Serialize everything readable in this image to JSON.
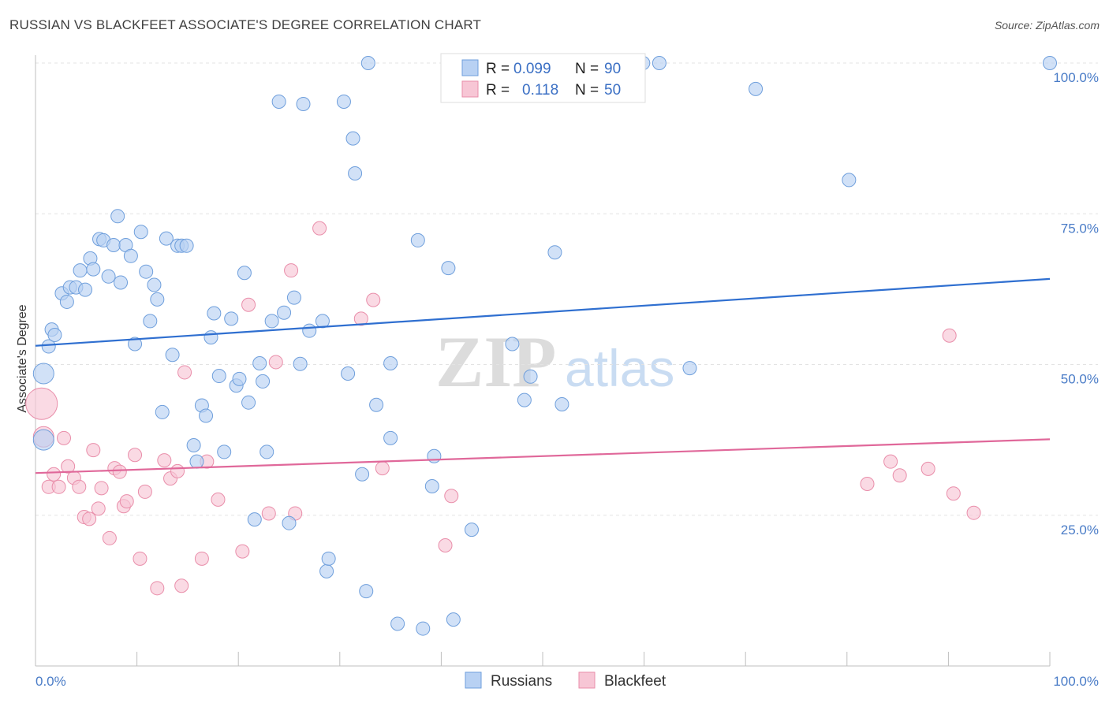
{
  "title": "RUSSIAN VS BLACKFEET ASSOCIATE'S DEGREE CORRELATION CHART",
  "source": "Source: ZipAtlas.com",
  "watermark": {
    "zip": "ZIP",
    "atlas": "atlas"
  },
  "colors": {
    "russians_fill": "#b8d1f3",
    "russians_stroke": "#6f9fdc",
    "russians_line": "#2f6fd0",
    "blackfeet_fill": "#f7c6d5",
    "blackfeet_stroke": "#e98eaa",
    "blackfeet_line": "#e0689a",
    "grid": "#e3e3e3",
    "tick_text": "#4a7cc7"
  },
  "stats": {
    "r_label": "R =",
    "n_label": "N =",
    "rows": [
      {
        "series": "Russians",
        "r": "0.099",
        "n": "90"
      },
      {
        "series": "Blackfeet",
        "r": "0.118",
        "n": "50"
      }
    ]
  },
  "chart_data": {
    "type": "scatter",
    "title": "RUSSIAN VS BLACKFEET ASSOCIATE'S DEGREE CORRELATION CHART",
    "xlabel": "",
    "ylabel": "Associate's Degree",
    "xlim": [
      0,
      100
    ],
    "ylim": [
      0,
      100
    ],
    "x_tick_labels": [
      "0.0%",
      "100.0%"
    ],
    "y_ticks": [
      25,
      50,
      75,
      100
    ],
    "y_tick_labels": [
      "25.0%",
      "50.0%",
      "75.0%",
      "100.0%"
    ],
    "grid": "horizontal dashed",
    "legend": "bottom-center",
    "series": [
      {
        "name": "Russians",
        "trend": [
          [
            0,
            53.1
          ],
          [
            100,
            64.2
          ]
        ],
        "points": [
          [
            0.8,
            37.5
          ],
          [
            0.8,
            48.5
          ],
          [
            1.3,
            53.0
          ],
          [
            1.6,
            55.8
          ],
          [
            1.9,
            54.9
          ],
          [
            2.6,
            61.8
          ],
          [
            3.1,
            60.4
          ],
          [
            3.4,
            62.8
          ],
          [
            4.0,
            62.8
          ],
          [
            4.4,
            65.6
          ],
          [
            4.9,
            62.4
          ],
          [
            5.4,
            67.6
          ],
          [
            5.7,
            65.8
          ],
          [
            6.3,
            70.8
          ],
          [
            6.7,
            70.6
          ],
          [
            7.2,
            64.6
          ],
          [
            7.7,
            69.8
          ],
          [
            8.1,
            74.6
          ],
          [
            8.4,
            63.6
          ],
          [
            8.9,
            69.8
          ],
          [
            9.4,
            68.0
          ],
          [
            9.8,
            53.4
          ],
          [
            10.4,
            72.0
          ],
          [
            10.9,
            65.4
          ],
          [
            11.3,
            57.2
          ],
          [
            11.7,
            63.2
          ],
          [
            12.0,
            60.8
          ],
          [
            12.5,
            42.1
          ],
          [
            12.9,
            70.9
          ],
          [
            13.5,
            51.6
          ],
          [
            14.0,
            69.7
          ],
          [
            14.4,
            69.7
          ],
          [
            14.9,
            69.7
          ],
          [
            15.6,
            36.6
          ],
          [
            15.9,
            33.9
          ],
          [
            16.4,
            43.2
          ],
          [
            16.8,
            41.5
          ],
          [
            17.3,
            54.5
          ],
          [
            17.6,
            58.5
          ],
          [
            18.1,
            48.1
          ],
          [
            18.6,
            35.5
          ],
          [
            19.3,
            57.6
          ],
          [
            19.8,
            46.5
          ],
          [
            20.1,
            47.6
          ],
          [
            20.6,
            65.2
          ],
          [
            21.0,
            43.7
          ],
          [
            21.6,
            24.3
          ],
          [
            22.1,
            50.2
          ],
          [
            22.4,
            47.2
          ],
          [
            22.8,
            35.5
          ],
          [
            23.3,
            57.2
          ],
          [
            24.0,
            93.6
          ],
          [
            24.5,
            58.6
          ],
          [
            25.0,
            23.7
          ],
          [
            25.5,
            61.1
          ],
          [
            26.1,
            50.1
          ],
          [
            26.4,
            93.2
          ],
          [
            27.0,
            55.6
          ],
          [
            28.3,
            57.2
          ],
          [
            28.7,
            15.7
          ],
          [
            28.9,
            17.8
          ],
          [
            30.4,
            93.6
          ],
          [
            30.8,
            48.5
          ],
          [
            31.3,
            87.5
          ],
          [
            31.5,
            81.7
          ],
          [
            32.2,
            31.8
          ],
          [
            32.6,
            12.4
          ],
          [
            32.8,
            100.0
          ],
          [
            33.6,
            43.3
          ],
          [
            35.0,
            37.8
          ],
          [
            35.0,
            50.2
          ],
          [
            35.7,
            7.0
          ],
          [
            37.7,
            70.6
          ],
          [
            38.2,
            6.2
          ],
          [
            39.1,
            29.8
          ],
          [
            39.3,
            34.8
          ],
          [
            40.7,
            66.0
          ],
          [
            41.2,
            7.7
          ],
          [
            43.0,
            22.6
          ],
          [
            47.0,
            53.4
          ],
          [
            48.2,
            44.1
          ],
          [
            48.8,
            48.0
          ],
          [
            51.2,
            68.6
          ],
          [
            51.9,
            43.4
          ],
          [
            59.9,
            100.0
          ],
          [
            61.5,
            100.0
          ],
          [
            64.5,
            49.4
          ],
          [
            71.0,
            95.7
          ],
          [
            80.2,
            80.6
          ],
          [
            100.0,
            100.0
          ]
        ]
      },
      {
        "name": "Blackfeet",
        "trend": [
          [
            0,
            32.0
          ],
          [
            100,
            37.6
          ]
        ],
        "points": [
          [
            0.6,
            43.5
          ],
          [
            0.8,
            38.0
          ],
          [
            1.3,
            29.7
          ],
          [
            1.8,
            31.8
          ],
          [
            2.3,
            29.7
          ],
          [
            2.8,
            37.8
          ],
          [
            3.2,
            33.1
          ],
          [
            3.8,
            31.2
          ],
          [
            4.3,
            29.7
          ],
          [
            4.8,
            24.7
          ],
          [
            5.3,
            24.4
          ],
          [
            5.7,
            35.8
          ],
          [
            6.2,
            26.1
          ],
          [
            6.5,
            29.5
          ],
          [
            7.3,
            21.2
          ],
          [
            7.8,
            32.8
          ],
          [
            8.3,
            32.2
          ],
          [
            8.7,
            26.5
          ],
          [
            9.0,
            27.3
          ],
          [
            9.8,
            35.0
          ],
          [
            10.3,
            17.8
          ],
          [
            10.8,
            28.9
          ],
          [
            12.0,
            12.9
          ],
          [
            12.7,
            34.1
          ],
          [
            13.3,
            31.1
          ],
          [
            14.0,
            32.3
          ],
          [
            14.4,
            13.3
          ],
          [
            14.7,
            48.7
          ],
          [
            16.4,
            17.8
          ],
          [
            16.9,
            33.9
          ],
          [
            18.0,
            27.6
          ],
          [
            20.4,
            19.0
          ],
          [
            21.0,
            59.9
          ],
          [
            23.0,
            25.3
          ],
          [
            23.7,
            50.4
          ],
          [
            25.2,
            65.6
          ],
          [
            25.6,
            25.3
          ],
          [
            28.0,
            72.6
          ],
          [
            32.1,
            57.6
          ],
          [
            33.3,
            60.7
          ],
          [
            34.2,
            32.8
          ],
          [
            40.4,
            20.0
          ],
          [
            41.0,
            28.2
          ],
          [
            82.0,
            30.2
          ],
          [
            84.3,
            33.9
          ],
          [
            85.2,
            31.6
          ],
          [
            88.0,
            32.7
          ],
          [
            90.1,
            54.8
          ],
          [
            90.5,
            28.6
          ],
          [
            92.5,
            25.4
          ]
        ]
      }
    ]
  },
  "legend": {
    "items": [
      "Russians",
      "Blackfeet"
    ]
  }
}
